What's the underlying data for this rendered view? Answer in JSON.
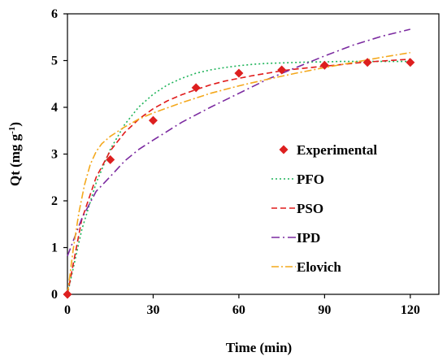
{
  "chart_data": {
    "type": "scatter",
    "xlabel": "Time (min)",
    "ylabel": "Qt (mg g",
    "ylabel_sup": "-1",
    "ylabel_end": ")",
    "xlim": [
      0,
      130
    ],
    "ylim": [
      0,
      6
    ],
    "xticks": [
      0,
      30,
      60,
      90,
      120
    ],
    "yticks": [
      0,
      1,
      2,
      3,
      4,
      5,
      6
    ],
    "legend_position": "right",
    "grid": false,
    "experimental": {
      "name": "Experimental",
      "color": "#dd1f1f",
      "marker": "diamond",
      "x": [
        0,
        15,
        30,
        45,
        60,
        75,
        90,
        105,
        120
      ],
      "y": [
        0,
        2.88,
        3.72,
        4.42,
        4.73,
        4.8,
        4.9,
        4.96,
        4.96
      ]
    },
    "series": [
      {
        "name": "PFO",
        "color": "#1fb45a",
        "dash": "2,3",
        "x": [
          0,
          5,
          10,
          15,
          20,
          25,
          30,
          35,
          40,
          45,
          50,
          55,
          60,
          65,
          70,
          75,
          80,
          85,
          90,
          95,
          100,
          105,
          110,
          115,
          120
        ],
        "y": [
          0,
          1.38,
          2.38,
          3.1,
          3.63,
          4.01,
          4.28,
          4.48,
          4.62,
          4.73,
          4.8,
          4.85,
          4.89,
          4.92,
          4.94,
          4.95,
          4.96,
          4.97,
          4.97,
          4.98,
          4.98,
          4.98,
          4.98,
          4.98,
          4.98
        ]
      },
      {
        "name": "PSO",
        "color": "#e01b1b",
        "dash": "7,4",
        "x": [
          0,
          5,
          10,
          15,
          20,
          25,
          30,
          35,
          40,
          45,
          50,
          55,
          60,
          65,
          70,
          75,
          80,
          85,
          90,
          95,
          100,
          105,
          110,
          115,
          120
        ],
        "y": [
          0,
          1.6,
          2.5,
          3.07,
          3.46,
          3.75,
          3.97,
          4.14,
          4.27,
          4.38,
          4.48,
          4.56,
          4.62,
          4.68,
          4.73,
          4.78,
          4.82,
          4.85,
          4.88,
          4.91,
          4.94,
          4.97,
          4.99,
          5.01,
          5.03
        ]
      },
      {
        "name": "IPD",
        "color": "#7b2aa0",
        "dash": "10,4,2,4",
        "x": [
          0,
          5,
          10,
          15,
          20,
          25,
          30,
          40,
          50,
          60,
          70,
          80,
          90,
          100,
          110,
          120
        ],
        "y": [
          0.82,
          1.62,
          2.2,
          2.52,
          2.85,
          3.1,
          3.3,
          3.68,
          4.0,
          4.3,
          4.6,
          4.85,
          5.1,
          5.33,
          5.52,
          5.67
        ]
      },
      {
        "name": "Elovich",
        "color": "#f4a81c",
        "dash": "9,3,2,3",
        "x": [
          0,
          2,
          4,
          6,
          8,
          10,
          12,
          15,
          20,
          25,
          30,
          40,
          50,
          60,
          70,
          80,
          90,
          100,
          110,
          120
        ],
        "y": [
          0,
          0.95,
          1.75,
          2.35,
          2.78,
          3.05,
          3.22,
          3.38,
          3.58,
          3.75,
          3.88,
          4.1,
          4.3,
          4.46,
          4.6,
          4.73,
          4.85,
          4.96,
          5.07,
          5.17
        ]
      }
    ]
  }
}
